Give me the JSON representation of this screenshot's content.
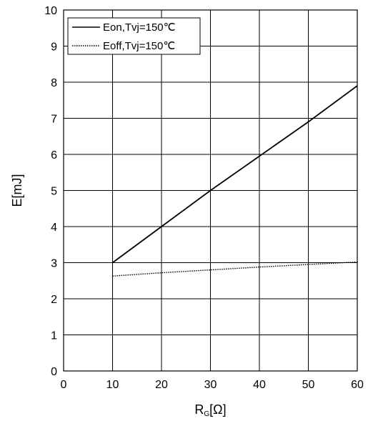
{
  "chart_data": {
    "type": "line",
    "xlabel": {
      "main": "R",
      "sub": "G",
      "unit": "[Ω]"
    },
    "ylabel": "E[mJ]",
    "xlim": [
      0,
      60
    ],
    "ylim": [
      0,
      10
    ],
    "xticks": [
      "0",
      "10",
      "20",
      "30",
      "40",
      "50",
      "60"
    ],
    "yticks": [
      "0",
      "1",
      "2",
      "3",
      "4",
      "5",
      "6",
      "7",
      "8",
      "9",
      "10"
    ],
    "grid": true,
    "legend_position": "top-left",
    "series": [
      {
        "name": "Eon,Tvj=150℃",
        "style": "solid",
        "x": [
          10,
          20,
          30,
          40,
          50,
          60
        ],
        "y": [
          3.0,
          4.0,
          5.0,
          5.95,
          6.9,
          7.9
        ]
      },
      {
        "name": "Eoff,Tvj=150℃",
        "style": "dotted",
        "x": [
          10,
          20,
          30,
          40,
          50,
          60
        ],
        "y": [
          2.63,
          2.72,
          2.8,
          2.88,
          2.95,
          3.02
        ]
      }
    ],
    "colors": {
      "line": "#000000",
      "grid": "#000000",
      "background": "#ffffff"
    }
  }
}
